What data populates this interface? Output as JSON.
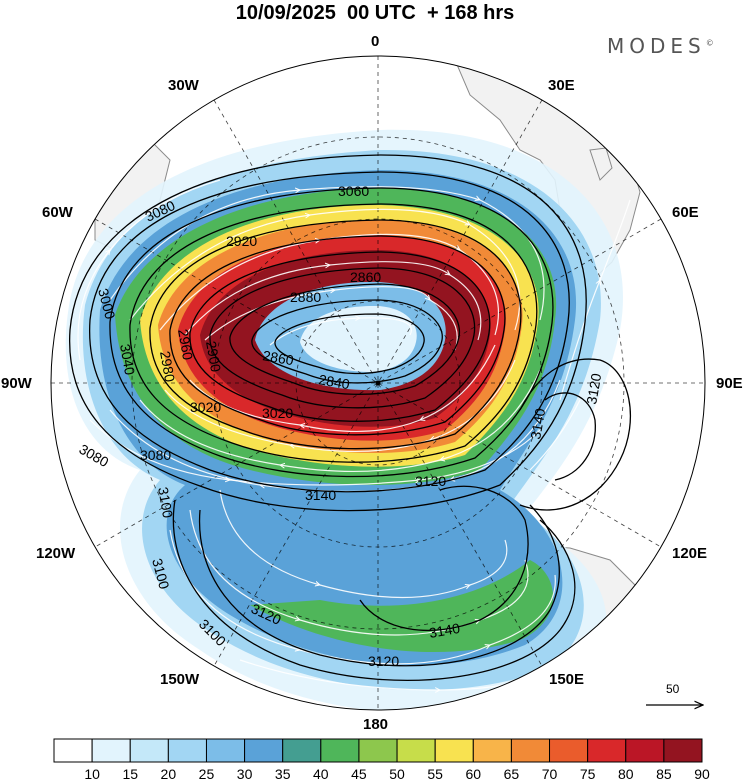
{
  "title": "10/09/2025  00 UTC  + 168 hrs",
  "brand": "MODES",
  "brand_mark": "©",
  "longitude_labels": [
    "0",
    "30E",
    "60E",
    "90E",
    "120E",
    "150E",
    "180",
    "150W",
    "120W",
    "90W",
    "60W",
    "30W"
  ],
  "contour_labels": [
    "3060",
    "3080",
    "2860",
    "2880",
    "2900",
    "2920",
    "2960",
    "2980",
    "3040",
    "3000",
    "3020",
    "3020",
    "2840",
    "2860",
    "3120",
    "3140",
    "3080",
    "3100",
    "3140",
    "3120",
    "3120",
    "3140",
    "3120",
    "3100",
    "3100",
    "3080"
  ],
  "colorbar": {
    "ticks": [
      "10",
      "15",
      "20",
      "25",
      "30",
      "35",
      "40",
      "45",
      "50",
      "55",
      "60",
      "65",
      "70",
      "75",
      "80",
      "85",
      "90"
    ],
    "colors": [
      "#ffffff",
      "#e2f4fd",
      "#c4e8f9",
      "#a2d6f3",
      "#7cbde8",
      "#5aa2d8",
      "#449e91",
      "#4fb65a",
      "#8dc74d",
      "#c7dd4a",
      "#f8e250",
      "#f8b449",
      "#f18a37",
      "#ea5c2c",
      "#d9282a",
      "#bb1626",
      "#931420"
    ]
  },
  "reference_vector": {
    "label": "50"
  },
  "colors": {
    "land": "#f2f2f2",
    "coast": "#8a8a8a",
    "contour": "#000000",
    "streamline": "#ffffff"
  }
}
